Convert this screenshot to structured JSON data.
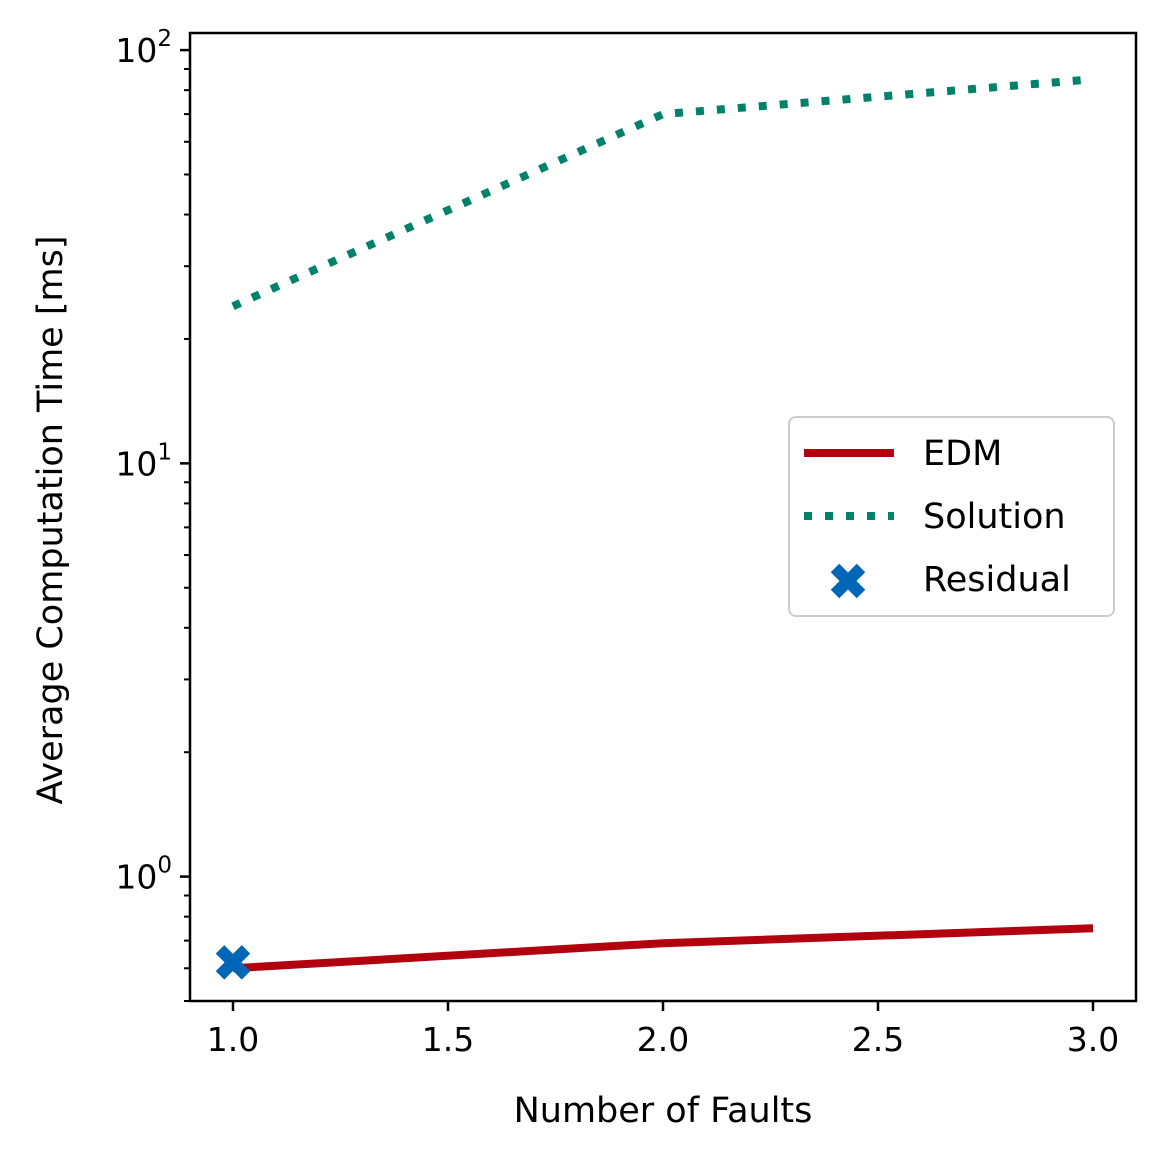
{
  "chart_data": {
    "type": "line",
    "title": "",
    "xlabel": "Number of Faults",
    "ylabel": "Average Computation Time [ms]",
    "xlim": [
      0.9,
      3.1
    ],
    "ylim": [
      0.5,
      110
    ],
    "yscale": "log",
    "x_ticks": [
      1.0,
      1.5,
      2.0,
      2.5,
      3.0
    ],
    "x_tick_labels": [
      "1.0",
      "1.5",
      "2.0",
      "2.5",
      "3.0"
    ],
    "y_ticks": [
      {
        "base": "10",
        "exp": "0",
        "value": 1
      },
      {
        "base": "10",
        "exp": "1",
        "value": 10
      },
      {
        "base": "10",
        "exp": "2",
        "value": 100
      }
    ],
    "grid": false,
    "legend_position": "center-right",
    "series": [
      {
        "name": "EDM",
        "style": "solid",
        "color": "#b2000f",
        "x": [
          1,
          2,
          3
        ],
        "y": [
          0.6,
          0.69,
          0.75
        ]
      },
      {
        "name": "Solution",
        "style": "dotted",
        "color": "#00826a",
        "x": [
          1,
          2,
          3
        ],
        "y": [
          24,
          70,
          85
        ]
      },
      {
        "name": "Residual",
        "style": "marker-x",
        "color": "#0066b8",
        "x": [
          1
        ],
        "y": [
          0.62
        ]
      }
    ]
  }
}
